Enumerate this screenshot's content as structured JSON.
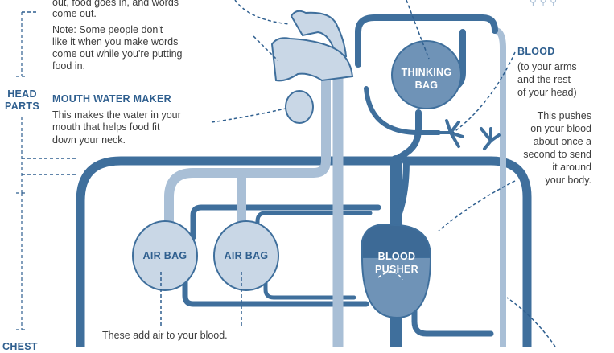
{
  "colors": {
    "vessel_dark": "#3f6f9c",
    "vessel_light": "#a9bfd6",
    "organ_fill": "#c9d7e6",
    "heart_dark": "#3d6a96",
    "heart_light": "#6f93b7",
    "label_blue": "#2f5f8f",
    "text": "#3d3d3d",
    "background": "#ffffff"
  },
  "left_panel": {
    "intro_line1": "out, food goes in, and words",
    "intro_line2": "come out.",
    "note_line1": "Note: Some people don't",
    "note_line2": "like it when you make words",
    "note_line3": "come out while you're putting",
    "note_line4": "food in.",
    "mouth_title": "MOUTH WATER MAKER",
    "mouth_line1": "This makes the water in your",
    "mouth_line2": "mouth that helps food fit",
    "mouth_line3": "down your neck.",
    "head_label_line1": "HEAD",
    "head_label_line2": "PARTS",
    "chest_label": "CHEST"
  },
  "organs": {
    "thinking_bag_line1": "THINKING",
    "thinking_bag_line2": "BAG",
    "air_bag_left": "AIR BAG",
    "air_bag_right": "AIR BAG",
    "blood_pusher_line1": "BLOOD",
    "blood_pusher_line2": "PUSHER"
  },
  "right_panel": {
    "blood_title": "BLOOD",
    "blood_line1": "(to your arms",
    "blood_line2": "and the rest",
    "blood_line3": "of your head)",
    "push_line1": "This pushes",
    "push_line2": "on your blood",
    "push_line3": "about once a",
    "push_line4": "second to send",
    "push_line5": "it around",
    "push_line6": "your body."
  },
  "bottom": {
    "air_line1": "These add air to your blood."
  }
}
